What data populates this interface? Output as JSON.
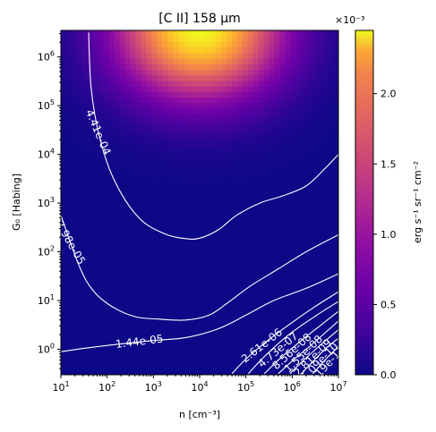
{
  "chart_data": {
    "type": "heatmap",
    "title": "[C II] 158 μm",
    "xlabel": "n [cm⁻³]",
    "ylabel": "G₀ [Habing]",
    "x_scale": "log",
    "y_scale": "log",
    "xlim": [
      10,
      10000000
    ],
    "ylim": [
      0.3,
      3500000
    ],
    "x_ticks": [
      {
        "value": 10,
        "base": "10",
        "exp": "1"
      },
      {
        "value": 100,
        "base": "10",
        "exp": "2"
      },
      {
        "value": 1000,
        "base": "10",
        "exp": "3"
      },
      {
        "value": 10000,
        "base": "10",
        "exp": "4"
      },
      {
        "value": 100000,
        "base": "10",
        "exp": "5"
      },
      {
        "value": 1000000,
        "base": "10",
        "exp": "6"
      },
      {
        "value": 10000000,
        "base": "10",
        "exp": "7"
      }
    ],
    "y_ticks": [
      {
        "value": 1,
        "base": "10",
        "exp": "0"
      },
      {
        "value": 10,
        "base": "10",
        "exp": "1"
      },
      {
        "value": 100,
        "base": "10",
        "exp": "2"
      },
      {
        "value": 1000,
        "base": "10",
        "exp": "3"
      },
      {
        "value": 10000,
        "base": "10",
        "exp": "4"
      },
      {
        "value": 100000,
        "base": "10",
        "exp": "5"
      },
      {
        "value": 1000000,
        "base": "10",
        "exp": "6"
      }
    ],
    "colormap": "plasma",
    "colorbar": {
      "label": "erg s⁻¹ sr⁻¹ cm⁻²",
      "multiplier": "×10⁻³",
      "range": [
        0.0,
        2.45
      ],
      "ticks": [
        "0.0",
        "0.5",
        "1.0",
        "1.5",
        "2.0"
      ],
      "tick_values": [
        0.0,
        0.5,
        1.0,
        1.5,
        2.0
      ]
    },
    "peak": {
      "log_n": 4.0,
      "log_g0": 6.6,
      "value": 0.00245
    },
    "contours": [
      {
        "level": "4.41e-04",
        "points": [
          [
            1.6,
            6.5
          ],
          [
            1.65,
            5.4
          ],
          [
            1.8,
            4.5
          ],
          [
            2.05,
            3.7
          ],
          [
            2.4,
            3.05
          ],
          [
            2.8,
            2.6
          ],
          [
            3.3,
            2.35
          ],
          [
            3.7,
            2.27
          ],
          [
            4.0,
            2.28
          ],
          [
            4.4,
            2.45
          ],
          [
            4.8,
            2.75
          ],
          [
            5.3,
            3.0
          ],
          [
            5.8,
            3.15
          ],
          [
            6.3,
            3.35
          ],
          [
            6.7,
            3.7
          ],
          [
            7.0,
            4.0
          ]
        ]
      },
      {
        "level": "7.98e-05",
        "points": [
          [
            1.0,
            2.75
          ],
          [
            1.4,
            1.7
          ],
          [
            1.7,
            1.2
          ],
          [
            2.1,
            0.88
          ],
          [
            2.6,
            0.67
          ],
          [
            3.1,
            0.62
          ],
          [
            3.7,
            0.6
          ],
          [
            4.2,
            0.7
          ],
          [
            4.6,
            0.95
          ],
          [
            5.1,
            1.3
          ],
          [
            5.7,
            1.65
          ],
          [
            6.3,
            2.0
          ],
          [
            7.0,
            2.35
          ]
        ]
      },
      {
        "level": "1.44e-05",
        "points": [
          [
            1.0,
            -0.05
          ],
          [
            1.5,
            0.02
          ],
          [
            2.2,
            0.1
          ],
          [
            3.0,
            0.18
          ],
          [
            3.7,
            0.24
          ],
          [
            4.4,
            0.42
          ],
          [
            5.0,
            0.7
          ],
          [
            5.6,
            1.0
          ],
          [
            6.3,
            1.25
          ],
          [
            7.0,
            1.55
          ]
        ]
      },
      {
        "level": "2.61e-06",
        "points": [
          [
            4.7,
            -0.5
          ],
          [
            5.0,
            -0.2
          ],
          [
            5.5,
            0.2
          ],
          [
            6.0,
            0.55
          ],
          [
            6.5,
            0.88
          ],
          [
            7.0,
            1.18
          ]
        ]
      },
      {
        "level": "4.73e-07",
        "points": [
          [
            5.05,
            -0.5
          ],
          [
            5.4,
            -0.15
          ],
          [
            5.9,
            0.28
          ],
          [
            6.5,
            0.68
          ],
          [
            7.0,
            0.98
          ]
        ]
      },
      {
        "level": "8.56e-08",
        "points": [
          [
            5.4,
            -0.5
          ],
          [
            5.75,
            -0.18
          ],
          [
            6.2,
            0.18
          ],
          [
            6.6,
            0.48
          ],
          [
            7.0,
            0.78
          ]
        ]
      },
      {
        "level": "1.55e-08",
        "points": [
          [
            5.7,
            -0.5
          ],
          [
            6.05,
            -0.2
          ],
          [
            6.45,
            0.12
          ],
          [
            7.0,
            0.58
          ]
        ]
      },
      {
        "level": "2.81e-09",
        "points": [
          [
            5.95,
            -0.5
          ],
          [
            6.3,
            -0.18
          ],
          [
            6.65,
            0.12
          ],
          [
            7.0,
            0.4
          ]
        ]
      },
      {
        "level": "5.09e-10",
        "points": [
          [
            6.2,
            -0.5
          ],
          [
            6.5,
            -0.2
          ],
          [
            6.8,
            0.08
          ],
          [
            7.0,
            0.22
          ]
        ]
      },
      {
        "level": "9.19e-11",
        "points": [
          [
            6.45,
            -0.5
          ],
          [
            6.75,
            -0.18
          ],
          [
            7.0,
            0.05
          ]
        ]
      }
    ],
    "contour_labels": [
      {
        "text": "4.41e-04",
        "at": [
          1.8,
          4.45
        ],
        "angle": 67
      },
      {
        "text": "7.98e-05",
        "at": [
          1.2,
          2.18
        ],
        "angle": 60
      },
      {
        "text": "1.44e-05",
        "at": [
          2.7,
          0.15
        ],
        "angle": -7
      },
      {
        "text": "2.61e-06",
        "at": [
          5.35,
          0.07
        ],
        "angle": -38
      },
      {
        "text": "4.73e-07",
        "at": [
          5.7,
          -0.02
        ],
        "angle": -40
      },
      {
        "text": "8.56e-08",
        "at": [
          6.0,
          -0.05
        ],
        "angle": -42
      },
      {
        "text": "1.55e-08",
        "at": [
          6.25,
          -0.1
        ],
        "angle": -44
      },
      {
        "text": "2.81e-09",
        "at": [
          6.45,
          -0.18
        ],
        "angle": -45
      },
      {
        "text": "5.09e-10",
        "at": [
          6.6,
          -0.26
        ],
        "angle": -46
      },
      {
        "text": "9.19e-11",
        "at": [
          6.75,
          -0.33
        ],
        "angle": -47
      }
    ]
  }
}
